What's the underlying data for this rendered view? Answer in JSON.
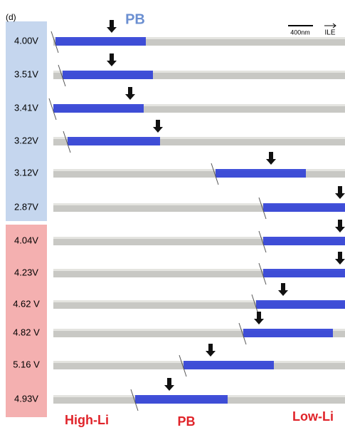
{
  "panel_label": "(d)",
  "top_label": "PB",
  "scale_bar": "400nm",
  "direction_label": "ILE",
  "voltage_groups": [
    {
      "voltages": [
        "4.00V",
        "3.51V",
        "3.41V",
        "3.22V",
        "3.12V",
        "2.87V"
      ]
    },
    {
      "voltages": [
        "4.04V",
        "4.23V",
        "4.62 V",
        "4.82 V",
        "5.16 V",
        "4.93V"
      ]
    }
  ],
  "bottom_labels": [
    "High-Li",
    "PB",
    "Low-Li"
  ]
}
